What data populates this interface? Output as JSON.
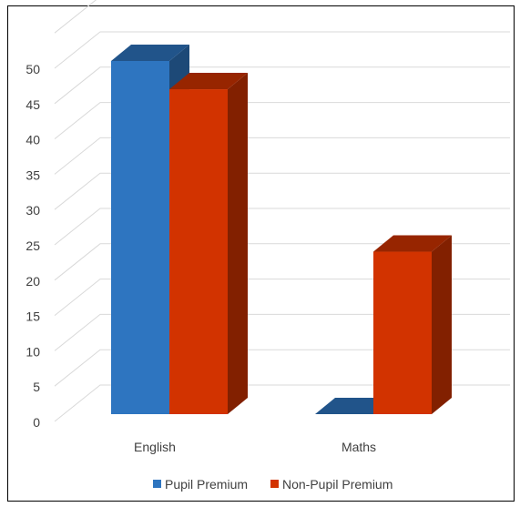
{
  "chart_data": {
    "type": "bar",
    "categories": [
      "English",
      "Maths"
    ],
    "series": [
      {
        "name": "Pupil Premium",
        "values": [
          50,
          0
        ],
        "color": "#2E75C0"
      },
      {
        "name": "Non-Pupil Premium",
        "values": [
          46,
          23
        ],
        "color": "#D23300"
      }
    ],
    "yticks": [
      0,
      5,
      10,
      15,
      20,
      25,
      30,
      35,
      40,
      45,
      50
    ],
    "ylim": [
      0,
      55
    ],
    "grid": true,
    "legend": "bottom",
    "style": "3d-clustered-bar"
  }
}
